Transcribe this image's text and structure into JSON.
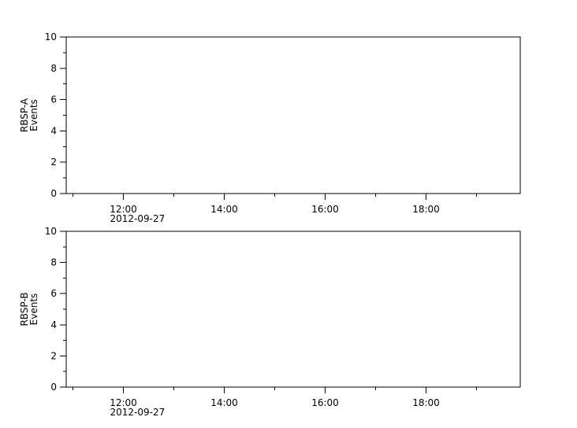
{
  "chart_data": [
    {
      "type": "line",
      "ylabel": [
        "RBSP-A",
        "Events"
      ],
      "ylim": [
        0,
        10
      ],
      "yticks": [
        0,
        2,
        4,
        6,
        8,
        10
      ],
      "yminor": [
        1,
        3,
        5,
        7,
        9
      ],
      "xlim": [
        "2012-09-27T10:52",
        "2012-09-27T19:52"
      ],
      "xticks": [
        "12:00",
        "14:00",
        "16:00",
        "18:00"
      ],
      "xticks_hours": [
        12,
        14,
        16,
        18
      ],
      "xminor_hours": [
        11,
        13,
        15,
        17,
        19
      ],
      "date_label": "2012-09-27",
      "series": []
    },
    {
      "type": "line",
      "ylabel": [
        "RBSP-B",
        "Events"
      ],
      "ylim": [
        0,
        10
      ],
      "yticks": [
        0,
        2,
        4,
        6,
        8,
        10
      ],
      "yminor": [
        1,
        3,
        5,
        7,
        9
      ],
      "xlim": [
        "2012-09-27T10:52",
        "2012-09-27T19:52"
      ],
      "xticks": [
        "12:00",
        "14:00",
        "16:00",
        "18:00"
      ],
      "xticks_hours": [
        12,
        14,
        16,
        18
      ],
      "xminor_hours": [
        11,
        13,
        15,
        17,
        19
      ],
      "date_label": "2012-09-27",
      "series": []
    }
  ]
}
